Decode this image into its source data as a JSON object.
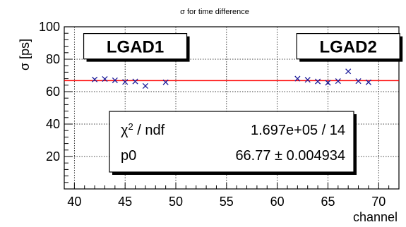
{
  "chart_data": {
    "type": "scatter",
    "title": "σ for time difference",
    "xlabel": "channel",
    "ylabel": "σ  [ps]",
    "xlim": [
      39,
      72
    ],
    "ylim": [
      0,
      100
    ],
    "x_ticks": [
      40,
      45,
      50,
      55,
      60,
      65,
      70
    ],
    "y_ticks": [
      20,
      40,
      60,
      80,
      100
    ],
    "grid": true,
    "series": [
      {
        "marker": "x",
        "color": "#1a1a9a",
        "x": [
          42,
          43,
          44,
          45,
          46,
          47,
          49,
          62,
          63,
          64,
          65,
          66,
          67,
          68,
          69
        ],
        "y": [
          67.5,
          67.8,
          67.0,
          66.0,
          66.3,
          63.5,
          65.8,
          68.0,
          67.3,
          66.3,
          65.5,
          66.5,
          72.5,
          66.5,
          65.8
        ]
      }
    ],
    "fit_line": {
      "y": 66.77,
      "color": "#ff0000"
    },
    "annotations": [
      {
        "text": "LGAD1",
        "x": 46,
        "y": 88
      },
      {
        "text": "LGAD2",
        "x": 67,
        "y": 88
      }
    ],
    "stats_box": {
      "rows": [
        {
          "label_base": "χ",
          "label_sup": "2",
          "label_rest": " / ndf",
          "value": "1.697e+05 / 14"
        },
        {
          "label_base": "p0",
          "label_sup": "",
          "label_rest": "",
          "value": "66.77 ± 0.004934"
        }
      ]
    }
  }
}
